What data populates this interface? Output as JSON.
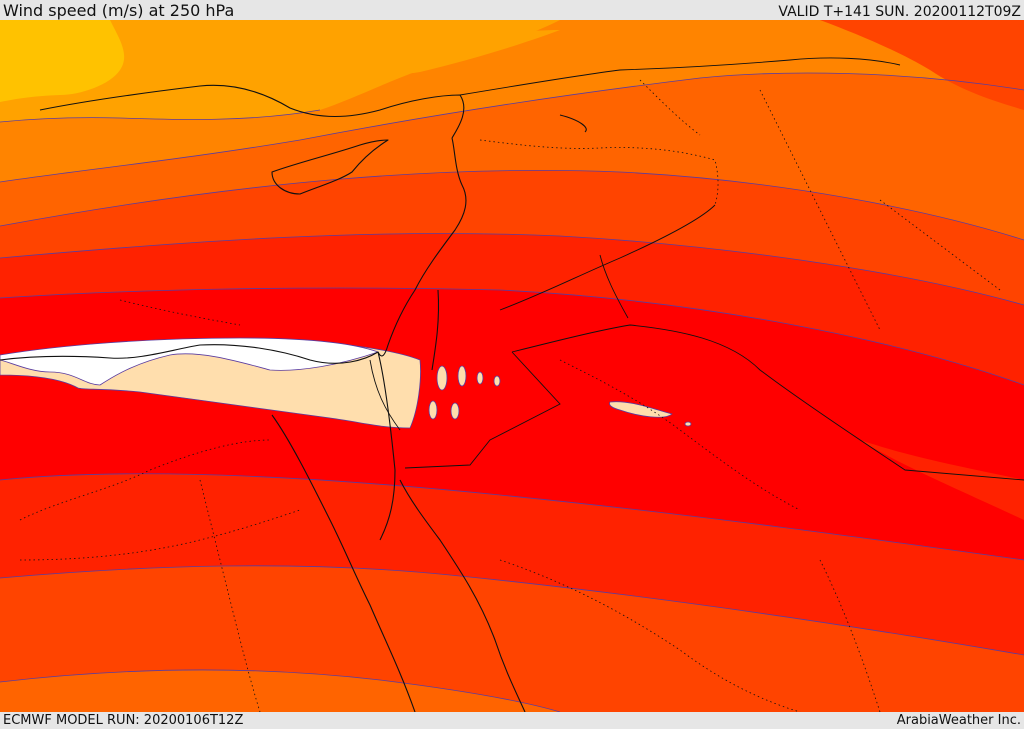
{
  "header": {
    "title": "Wind speed (m/s) at 250 hPa",
    "valid_time": "VALID T+141 SUN. 20200112T09Z"
  },
  "footer": {
    "model_run": "ECMWF MODEL RUN: 20200106T12Z",
    "credit": "ArabiaWeather Inc."
  },
  "map": {
    "variable": "wind speed",
    "units": "m/s",
    "pressure_level": "250 hPa",
    "colors": {
      "band_1": "#ffc200",
      "band_2": "#ffa200",
      "band_3": "#ff8400",
      "band_4": "#ff6400",
      "band_5": "#ff4400",
      "band_6": "#ff2200",
      "band_7": "#ff0000",
      "jet_core_light": "#ffdead",
      "jet_core_max": "#ffffff",
      "contour_line": "#5a3ca0",
      "coastline": "#111111"
    }
  }
}
